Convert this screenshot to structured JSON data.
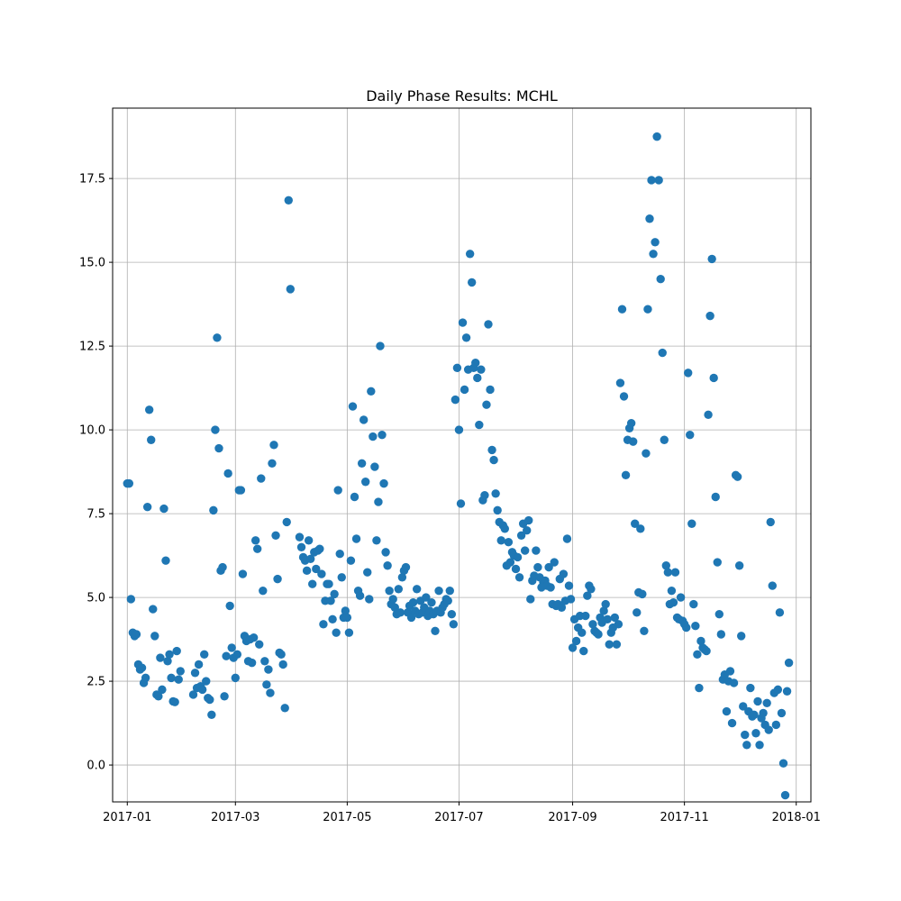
{
  "chart_data": {
    "type": "scatter",
    "title": "Daily Phase Results: MCHL",
    "xlabel": "",
    "ylabel": "",
    "x_axis_kind": "date",
    "xlim": [
      "2016-12-24",
      "2018-01-09"
    ],
    "ylim": [
      -1.1,
      19.6
    ],
    "x_ticks": [
      "2017-01-01",
      "2017-03-01",
      "2017-05-01",
      "2017-07-01",
      "2017-09-01",
      "2017-11-01",
      "2018-01-01"
    ],
    "x_tick_labels": [
      "2017-01",
      "2017-03",
      "2017-05",
      "2017-07",
      "2017-09",
      "2017-11",
      "2018-01"
    ],
    "y_ticks": [
      0.0,
      2.5,
      5.0,
      7.5,
      10.0,
      12.5,
      15.0,
      17.5
    ],
    "y_tick_labels": [
      "0.0",
      "2.5",
      "5.0",
      "7.5",
      "10.0",
      "12.5",
      "15.0",
      "17.5"
    ],
    "grid": true,
    "marker_color": "#1f77b4",
    "points": [
      [
        "2017-01-01",
        8.4
      ],
      [
        "2017-01-02",
        8.4
      ],
      [
        "2017-01-03",
        4.95
      ],
      [
        "2017-01-04",
        3.95
      ],
      [
        "2017-01-05",
        3.85
      ],
      [
        "2017-01-06",
        3.9
      ],
      [
        "2017-01-07",
        3.0
      ],
      [
        "2017-01-08",
        2.85
      ],
      [
        "2017-01-09",
        2.9
      ],
      [
        "2017-01-10",
        2.45
      ],
      [
        "2017-01-11",
        2.6
      ],
      [
        "2017-01-12",
        7.7
      ],
      [
        "2017-01-13",
        10.6
      ],
      [
        "2017-01-14",
        9.7
      ],
      [
        "2017-01-15",
        4.65
      ],
      [
        "2017-01-16",
        3.85
      ],
      [
        "2017-01-17",
        2.1
      ],
      [
        "2017-01-18",
        2.05
      ],
      [
        "2017-01-19",
        3.2
      ],
      [
        "2017-01-20",
        2.25
      ],
      [
        "2017-01-21",
        7.65
      ],
      [
        "2017-01-22",
        6.1
      ],
      [
        "2017-01-23",
        3.1
      ],
      [
        "2017-01-24",
        3.3
      ],
      [
        "2017-01-25",
        2.6
      ],
      [
        "2017-01-26",
        1.9
      ],
      [
        "2017-01-27",
        1.88
      ],
      [
        "2017-01-28",
        3.4
      ],
      [
        "2017-01-29",
        2.55
      ],
      [
        "2017-01-30",
        2.8
      ],
      [
        "2017-02-06",
        2.1
      ],
      [
        "2017-02-07",
        2.75
      ],
      [
        "2017-02-08",
        2.3
      ],
      [
        "2017-02-09",
        3.0
      ],
      [
        "2017-02-10",
        2.35
      ],
      [
        "2017-02-11",
        2.25
      ],
      [
        "2017-02-12",
        3.3
      ],
      [
        "2017-02-13",
        2.5
      ],
      [
        "2017-02-14",
        2.0
      ],
      [
        "2017-02-15",
        1.95
      ],
      [
        "2017-02-16",
        1.5
      ],
      [
        "2017-02-17",
        7.6
      ],
      [
        "2017-02-18",
        10.0
      ],
      [
        "2017-02-19",
        12.75
      ],
      [
        "2017-02-20",
        9.45
      ],
      [
        "2017-02-21",
        5.8
      ],
      [
        "2017-02-22",
        5.9
      ],
      [
        "2017-02-23",
        2.05
      ],
      [
        "2017-02-24",
        3.25
      ],
      [
        "2017-02-25",
        8.7
      ],
      [
        "2017-02-26",
        4.75
      ],
      [
        "2017-02-27",
        3.5
      ],
      [
        "2017-02-28",
        3.2
      ],
      [
        "2017-03-01",
        2.6
      ],
      [
        "2017-03-02",
        3.3
      ],
      [
        "2017-03-03",
        8.2
      ],
      [
        "2017-03-04",
        8.2
      ],
      [
        "2017-03-05",
        5.7
      ],
      [
        "2017-03-06",
        3.85
      ],
      [
        "2017-03-07",
        3.7
      ],
      [
        "2017-03-08",
        3.1
      ],
      [
        "2017-03-09",
        3.75
      ],
      [
        "2017-03-10",
        3.05
      ],
      [
        "2017-03-11",
        3.8
      ],
      [
        "2017-03-12",
        6.7
      ],
      [
        "2017-03-13",
        6.45
      ],
      [
        "2017-03-14",
        3.6
      ],
      [
        "2017-03-15",
        8.55
      ],
      [
        "2017-03-16",
        5.2
      ],
      [
        "2017-03-17",
        3.1
      ],
      [
        "2017-03-18",
        2.4
      ],
      [
        "2017-03-19",
        2.85
      ],
      [
        "2017-03-20",
        2.15
      ],
      [
        "2017-03-21",
        9.0
      ],
      [
        "2017-03-22",
        9.55
      ],
      [
        "2017-03-23",
        6.85
      ],
      [
        "2017-03-24",
        5.55
      ],
      [
        "2017-03-25",
        3.35
      ],
      [
        "2017-03-26",
        3.3
      ],
      [
        "2017-03-27",
        3.0
      ],
      [
        "2017-03-28",
        1.7
      ],
      [
        "2017-03-29",
        7.25
      ],
      [
        "2017-03-30",
        16.85
      ],
      [
        "2017-03-31",
        14.2
      ],
      [
        "2017-04-05",
        6.8
      ],
      [
        "2017-04-06",
        6.5
      ],
      [
        "2017-04-07",
        6.2
      ],
      [
        "2017-04-08",
        6.1
      ],
      [
        "2017-04-09",
        5.8
      ],
      [
        "2017-04-10",
        6.7
      ],
      [
        "2017-04-11",
        6.15
      ],
      [
        "2017-04-12",
        5.4
      ],
      [
        "2017-04-13",
        6.35
      ],
      [
        "2017-04-14",
        5.85
      ],
      [
        "2017-04-15",
        6.4
      ],
      [
        "2017-04-16",
        6.45
      ],
      [
        "2017-04-17",
        5.7
      ],
      [
        "2017-04-18",
        4.2
      ],
      [
        "2017-04-19",
        4.9
      ],
      [
        "2017-04-20",
        5.4
      ],
      [
        "2017-04-21",
        5.4
      ],
      [
        "2017-04-22",
        4.9
      ],
      [
        "2017-04-23",
        4.35
      ],
      [
        "2017-04-24",
        5.1
      ],
      [
        "2017-04-25",
        3.95
      ],
      [
        "2017-04-26",
        8.2
      ],
      [
        "2017-04-27",
        6.3
      ],
      [
        "2017-04-28",
        5.6
      ],
      [
        "2017-04-29",
        4.4
      ],
      [
        "2017-04-30",
        4.6
      ],
      [
        "2017-05-01",
        4.4
      ],
      [
        "2017-05-02",
        3.95
      ],
      [
        "2017-05-03",
        6.1
      ],
      [
        "2017-05-04",
        10.7
      ],
      [
        "2017-05-05",
        8.0
      ],
      [
        "2017-05-06",
        6.75
      ],
      [
        "2017-05-07",
        5.2
      ],
      [
        "2017-05-08",
        5.05
      ],
      [
        "2017-05-09",
        9.0
      ],
      [
        "2017-05-10",
        10.3
      ],
      [
        "2017-05-11",
        8.45
      ],
      [
        "2017-05-12",
        5.75
      ],
      [
        "2017-05-13",
        4.95
      ],
      [
        "2017-05-14",
        11.15
      ],
      [
        "2017-05-15",
        9.8
      ],
      [
        "2017-05-16",
        8.9
      ],
      [
        "2017-05-17",
        6.7
      ],
      [
        "2017-05-18",
        7.85
      ],
      [
        "2017-05-19",
        12.5
      ],
      [
        "2017-05-20",
        9.85
      ],
      [
        "2017-05-21",
        8.4
      ],
      [
        "2017-05-22",
        6.35
      ],
      [
        "2017-05-23",
        5.95
      ],
      [
        "2017-05-24",
        5.2
      ],
      [
        "2017-05-25",
        4.8
      ],
      [
        "2017-05-26",
        4.95
      ],
      [
        "2017-05-27",
        4.7
      ],
      [
        "2017-05-28",
        4.5
      ],
      [
        "2017-05-29",
        5.25
      ],
      [
        "2017-05-30",
        4.55
      ],
      [
        "2017-05-31",
        5.6
      ],
      [
        "2017-06-01",
        5.8
      ],
      [
        "2017-06-02",
        5.9
      ],
      [
        "2017-06-03",
        4.55
      ],
      [
        "2017-06-04",
        4.75
      ],
      [
        "2017-06-05",
        4.4
      ],
      [
        "2017-06-06",
        4.85
      ],
      [
        "2017-06-07",
        4.6
      ],
      [
        "2017-06-08",
        5.25
      ],
      [
        "2017-06-09",
        4.5
      ],
      [
        "2017-06-10",
        4.9
      ],
      [
        "2017-06-11",
        4.55
      ],
      [
        "2017-06-12",
        4.7
      ],
      [
        "2017-06-13",
        5.0
      ],
      [
        "2017-06-14",
        4.45
      ],
      [
        "2017-06-15",
        4.6
      ],
      [
        "2017-06-16",
        4.85
      ],
      [
        "2017-06-17",
        4.5
      ],
      [
        "2017-06-18",
        4.0
      ],
      [
        "2017-06-19",
        4.6
      ],
      [
        "2017-06-20",
        5.2
      ],
      [
        "2017-06-21",
        4.55
      ],
      [
        "2017-06-22",
        4.7
      ],
      [
        "2017-06-23",
        4.8
      ],
      [
        "2017-06-24",
        4.95
      ],
      [
        "2017-06-25",
        4.9
      ],
      [
        "2017-06-26",
        5.2
      ],
      [
        "2017-06-27",
        4.5
      ],
      [
        "2017-06-28",
        4.2
      ],
      [
        "2017-06-29",
        10.9
      ],
      [
        "2017-06-30",
        11.85
      ],
      [
        "2017-07-01",
        10.0
      ],
      [
        "2017-07-02",
        7.8
      ],
      [
        "2017-07-03",
        13.2
      ],
      [
        "2017-07-04",
        11.2
      ],
      [
        "2017-07-05",
        12.75
      ],
      [
        "2017-07-06",
        11.8
      ],
      [
        "2017-07-07",
        15.25
      ],
      [
        "2017-07-08",
        14.4
      ],
      [
        "2017-07-09",
        11.85
      ],
      [
        "2017-07-10",
        12.0
      ],
      [
        "2017-07-11",
        11.55
      ],
      [
        "2017-07-12",
        10.15
      ],
      [
        "2017-07-13",
        11.8
      ],
      [
        "2017-07-14",
        7.9
      ],
      [
        "2017-07-15",
        8.05
      ],
      [
        "2017-07-16",
        10.75
      ],
      [
        "2017-07-17",
        13.15
      ],
      [
        "2017-07-18",
        11.2
      ],
      [
        "2017-07-19",
        9.4
      ],
      [
        "2017-07-20",
        9.1
      ],
      [
        "2017-07-21",
        8.1
      ],
      [
        "2017-07-22",
        7.6
      ],
      [
        "2017-07-23",
        7.25
      ],
      [
        "2017-07-24",
        6.7
      ],
      [
        "2017-07-25",
        7.15
      ],
      [
        "2017-07-26",
        7.05
      ],
      [
        "2017-07-27",
        5.95
      ],
      [
        "2017-07-28",
        6.65
      ],
      [
        "2017-07-29",
        6.05
      ],
      [
        "2017-07-30",
        6.35
      ],
      [
        "2017-07-31",
        6.25
      ],
      [
        "2017-08-01",
        5.85
      ],
      [
        "2017-08-02",
        6.2
      ],
      [
        "2017-08-03",
        5.6
      ],
      [
        "2017-08-04",
        6.85
      ],
      [
        "2017-08-05",
        7.2
      ],
      [
        "2017-08-06",
        6.4
      ],
      [
        "2017-08-07",
        7.0
      ],
      [
        "2017-08-08",
        7.3
      ],
      [
        "2017-08-09",
        4.95
      ],
      [
        "2017-08-10",
        5.5
      ],
      [
        "2017-08-11",
        5.65
      ],
      [
        "2017-08-12",
        6.4
      ],
      [
        "2017-08-13",
        5.9
      ],
      [
        "2017-08-14",
        5.6
      ],
      [
        "2017-08-15",
        5.3
      ],
      [
        "2017-08-16",
        5.45
      ],
      [
        "2017-08-17",
        5.5
      ],
      [
        "2017-08-18",
        5.35
      ],
      [
        "2017-08-19",
        5.9
      ],
      [
        "2017-08-20",
        5.3
      ],
      [
        "2017-08-21",
        4.8
      ],
      [
        "2017-08-22",
        6.05
      ],
      [
        "2017-08-23",
        4.75
      ],
      [
        "2017-08-24",
        4.8
      ],
      [
        "2017-08-25",
        5.55
      ],
      [
        "2017-08-26",
        4.7
      ],
      [
        "2017-08-27",
        5.7
      ],
      [
        "2017-08-28",
        4.9
      ],
      [
        "2017-08-29",
        6.75
      ],
      [
        "2017-08-30",
        5.35
      ],
      [
        "2017-08-31",
        4.95
      ],
      [
        "2017-09-01",
        3.5
      ],
      [
        "2017-09-02",
        4.35
      ],
      [
        "2017-09-03",
        3.7
      ],
      [
        "2017-09-04",
        4.1
      ],
      [
        "2017-09-05",
        4.45
      ],
      [
        "2017-09-06",
        3.95
      ],
      [
        "2017-09-07",
        3.4
      ],
      [
        "2017-09-08",
        4.45
      ],
      [
        "2017-09-09",
        5.05
      ],
      [
        "2017-09-10",
        5.35
      ],
      [
        "2017-09-11",
        5.25
      ],
      [
        "2017-09-12",
        4.2
      ],
      [
        "2017-09-13",
        4.0
      ],
      [
        "2017-09-14",
        3.95
      ],
      [
        "2017-09-15",
        3.9
      ],
      [
        "2017-09-16",
        4.4
      ],
      [
        "2017-09-17",
        4.25
      ],
      [
        "2017-09-18",
        4.6
      ],
      [
        "2017-09-19",
        4.8
      ],
      [
        "2017-09-20",
        4.35
      ],
      [
        "2017-09-21",
        3.6
      ],
      [
        "2017-09-22",
        3.95
      ],
      [
        "2017-09-23",
        4.1
      ],
      [
        "2017-09-24",
        4.4
      ],
      [
        "2017-09-25",
        3.6
      ],
      [
        "2017-09-26",
        4.2
      ],
      [
        "2017-09-27",
        11.4
      ],
      [
        "2017-09-28",
        13.6
      ],
      [
        "2017-09-29",
        11.0
      ],
      [
        "2017-09-30",
        8.65
      ],
      [
        "2017-10-01",
        9.7
      ],
      [
        "2017-10-02",
        10.05
      ],
      [
        "2017-10-03",
        10.2
      ],
      [
        "2017-10-04",
        9.65
      ],
      [
        "2017-10-05",
        7.2
      ],
      [
        "2017-10-06",
        4.55
      ],
      [
        "2017-10-07",
        5.15
      ],
      [
        "2017-10-08",
        7.05
      ],
      [
        "2017-10-09",
        5.1
      ],
      [
        "2017-10-10",
        4.0
      ],
      [
        "2017-10-11",
        9.3
      ],
      [
        "2017-10-12",
        13.6
      ],
      [
        "2017-10-13",
        16.3
      ],
      [
        "2017-10-14",
        17.45
      ],
      [
        "2017-10-15",
        15.25
      ],
      [
        "2017-10-16",
        15.6
      ],
      [
        "2017-10-17",
        18.75
      ],
      [
        "2017-10-18",
        17.45
      ],
      [
        "2017-10-19",
        14.5
      ],
      [
        "2017-10-20",
        12.3
      ],
      [
        "2017-10-21",
        9.7
      ],
      [
        "2017-10-22",
        5.95
      ],
      [
        "2017-10-23",
        5.75
      ],
      [
        "2017-10-24",
        4.8
      ],
      [
        "2017-10-25",
        5.2
      ],
      [
        "2017-10-26",
        4.85
      ],
      [
        "2017-10-27",
        5.75
      ],
      [
        "2017-10-28",
        4.4
      ],
      [
        "2017-10-29",
        4.35
      ],
      [
        "2017-10-30",
        5.0
      ],
      [
        "2017-10-31",
        4.3
      ],
      [
        "2017-11-01",
        4.2
      ],
      [
        "2017-11-02",
        4.1
      ],
      [
        "2017-11-03",
        11.7
      ],
      [
        "2017-11-04",
        9.85
      ],
      [
        "2017-11-05",
        7.2
      ],
      [
        "2017-11-06",
        4.8
      ],
      [
        "2017-11-07",
        4.15
      ],
      [
        "2017-11-08",
        3.3
      ],
      [
        "2017-11-09",
        2.3
      ],
      [
        "2017-11-10",
        3.7
      ],
      [
        "2017-11-11",
        3.5
      ],
      [
        "2017-11-12",
        3.45
      ],
      [
        "2017-11-13",
        3.4
      ],
      [
        "2017-11-14",
        10.45
      ],
      [
        "2017-11-15",
        13.4
      ],
      [
        "2017-11-16",
        15.1
      ],
      [
        "2017-11-17",
        11.55
      ],
      [
        "2017-11-18",
        8.0
      ],
      [
        "2017-11-19",
        6.05
      ],
      [
        "2017-11-20",
        4.5
      ],
      [
        "2017-11-21",
        3.9
      ],
      [
        "2017-11-22",
        2.55
      ],
      [
        "2017-11-23",
        2.7
      ],
      [
        "2017-11-24",
        1.6
      ],
      [
        "2017-11-25",
        2.5
      ],
      [
        "2017-11-26",
        2.8
      ],
      [
        "2017-11-27",
        1.25
      ],
      [
        "2017-11-28",
        2.45
      ],
      [
        "2017-11-29",
        8.65
      ],
      [
        "2017-11-30",
        8.6
      ],
      [
        "2017-12-01",
        5.95
      ],
      [
        "2017-12-02",
        3.85
      ],
      [
        "2017-12-03",
        1.75
      ],
      [
        "2017-12-04",
        0.9
      ],
      [
        "2017-12-05",
        0.6
      ],
      [
        "2017-12-06",
        1.6
      ],
      [
        "2017-12-07",
        2.3
      ],
      [
        "2017-12-08",
        1.45
      ],
      [
        "2017-12-09",
        1.5
      ],
      [
        "2017-12-10",
        0.95
      ],
      [
        "2017-12-11",
        1.9
      ],
      [
        "2017-12-12",
        0.6
      ],
      [
        "2017-12-13",
        1.4
      ],
      [
        "2017-12-14",
        1.55
      ],
      [
        "2017-12-15",
        1.2
      ],
      [
        "2017-12-16",
        1.85
      ],
      [
        "2017-12-17",
        1.05
      ],
      [
        "2017-12-18",
        7.25
      ],
      [
        "2017-12-19",
        5.35
      ],
      [
        "2017-12-20",
        2.15
      ],
      [
        "2017-12-21",
        1.2
      ],
      [
        "2017-12-22",
        2.25
      ],
      [
        "2017-12-23",
        4.55
      ],
      [
        "2017-12-24",
        1.55
      ],
      [
        "2017-12-25",
        0.05
      ],
      [
        "2017-12-26",
        -0.9
      ],
      [
        "2017-12-27",
        2.2
      ],
      [
        "2017-12-28",
        3.05
      ]
    ]
  }
}
